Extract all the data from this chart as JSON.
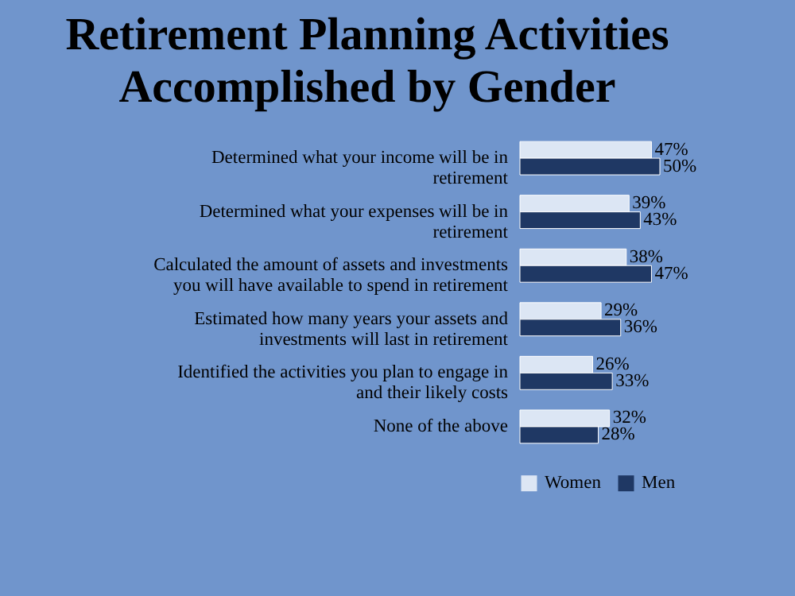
{
  "chart_data": {
    "type": "bar",
    "orientation": "horizontal",
    "title": "Retirement Planning Activities Accomplished by Gender",
    "categories": [
      "Determined what your income will be in retirement",
      "Determined what your expenses will be in retirement",
      "Calculated the amount of assets and investments you will have available to spend in retirement",
      "Estimated how many years your assets and investments will last in retirement",
      "Identified the activities you plan to engage in and their likely costs",
      "None of the above"
    ],
    "series": [
      {
        "name": "Women",
        "color": "#dce6f4",
        "values": [
          47,
          39,
          38,
          29,
          26,
          32
        ],
        "value_labels": [
          "47%",
          "39%",
          "38%",
          "29%",
          "26%",
          "32%"
        ]
      },
      {
        "name": "Men",
        "color": "#1f3864",
        "values": [
          50,
          43,
          47,
          36,
          33,
          28
        ],
        "value_labels": [
          "50%",
          "43%",
          "47%",
          "36%",
          "33%",
          "28%"
        ]
      }
    ],
    "legend": "bottom"
  }
}
